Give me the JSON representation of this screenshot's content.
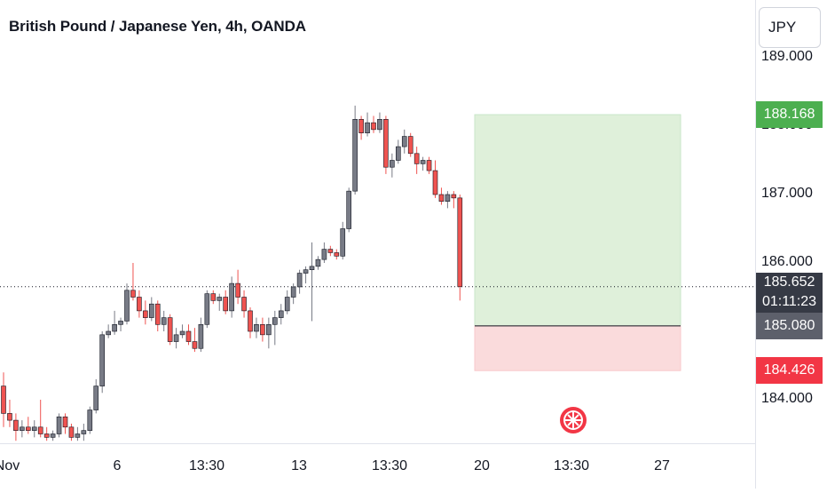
{
  "header": {
    "title": "British Pound / Japanese Yen, 4h, OANDA",
    "currency": "JPY"
  },
  "colors": {
    "up": "#787b86",
    "down": "#ef5350",
    "target_zone": "#dff0da",
    "stop_zone": "#fadbdc",
    "target_tag": "#4caf50",
    "stop_tag": "#f23645",
    "current_tag": "#363a45",
    "entry_tag": "#5d606b"
  },
  "price_tags": {
    "target": "188.168",
    "current": "185.652",
    "countdown": "01:11:23",
    "entry": "185.080",
    "stop": "184.426"
  },
  "chart_data": {
    "type": "candlestick",
    "title": "British Pound / Japanese Yen, 4h, OANDA",
    "y_ticks": [
      "189.000",
      "188.000",
      "187.000",
      "186.000",
      "184.000"
    ],
    "x_ticks": [
      "Nov",
      "6",
      "13:30",
      "13",
      "13:30",
      "20",
      "13:30",
      "27"
    ],
    "ylim": [
      183.4,
      189.0
    ],
    "candles": [
      [
        184.2,
        184.4,
        183.6,
        183.8
      ],
      [
        183.8,
        184.0,
        183.6,
        183.7
      ],
      [
        183.7,
        183.8,
        183.4,
        183.55
      ],
      [
        183.55,
        183.7,
        183.45,
        183.6
      ],
      [
        183.6,
        183.75,
        183.5,
        183.55
      ],
      [
        183.55,
        183.7,
        183.45,
        183.6
      ],
      [
        183.6,
        184.0,
        183.45,
        183.5
      ],
      [
        183.5,
        183.6,
        183.4,
        183.45
      ],
      [
        183.45,
        183.55,
        183.4,
        183.5
      ],
      [
        183.5,
        183.8,
        183.45,
        183.75
      ],
      [
        183.75,
        183.8,
        183.5,
        183.6
      ],
      [
        183.6,
        183.65,
        183.4,
        183.45
      ],
      [
        183.45,
        183.6,
        183.4,
        183.5
      ],
      [
        183.5,
        183.65,
        183.4,
        183.55
      ],
      [
        183.55,
        183.9,
        183.5,
        183.85
      ],
      [
        183.85,
        184.3,
        183.8,
        184.2
      ],
      [
        184.2,
        185.0,
        184.1,
        184.95
      ],
      [
        184.95,
        185.1,
        184.9,
        185.0
      ],
      [
        185.0,
        185.3,
        184.95,
        185.1
      ],
      [
        185.1,
        185.2,
        185.0,
        185.15
      ],
      [
        185.15,
        185.7,
        185.1,
        185.6
      ],
      [
        185.6,
        186.0,
        185.45,
        185.5
      ],
      [
        185.5,
        185.6,
        185.2,
        185.3
      ],
      [
        185.3,
        185.45,
        185.1,
        185.2
      ],
      [
        185.2,
        185.5,
        185.15,
        185.4
      ],
      [
        185.4,
        185.45,
        185.0,
        185.1
      ],
      [
        185.1,
        185.3,
        185.0,
        185.2
      ],
      [
        185.2,
        185.25,
        184.8,
        184.85
      ],
      [
        184.85,
        185.05,
        184.75,
        184.95
      ],
      [
        184.95,
        185.1,
        184.9,
        185.0
      ],
      [
        185.0,
        185.1,
        184.8,
        184.85
      ],
      [
        184.85,
        185.05,
        184.7,
        184.75
      ],
      [
        184.75,
        185.2,
        184.7,
        185.1
      ],
      [
        185.1,
        185.6,
        185.05,
        185.55
      ],
      [
        185.55,
        185.6,
        185.4,
        185.45
      ],
      [
        185.45,
        185.55,
        185.3,
        185.5
      ],
      [
        185.5,
        185.6,
        185.25,
        185.3
      ],
      [
        185.3,
        185.8,
        185.2,
        185.7
      ],
      [
        185.7,
        185.9,
        185.4,
        185.5
      ],
      [
        185.5,
        185.6,
        185.2,
        185.3
      ],
      [
        185.3,
        185.35,
        184.9,
        185.0
      ],
      [
        185.0,
        185.2,
        184.9,
        185.1
      ],
      [
        185.1,
        185.2,
        184.85,
        184.95
      ],
      [
        184.95,
        185.2,
        184.75,
        185.1
      ],
      [
        185.1,
        185.3,
        184.8,
        185.2
      ],
      [
        185.2,
        185.4,
        185.1,
        185.3
      ],
      [
        185.3,
        185.6,
        185.25,
        185.5
      ],
      [
        185.5,
        185.7,
        185.4,
        185.65
      ],
      [
        185.65,
        185.9,
        185.55,
        185.85
      ],
      [
        185.85,
        185.95,
        185.7,
        185.9
      ],
      [
        185.9,
        186.3,
        185.15,
        185.95
      ],
      [
        185.95,
        186.1,
        185.9,
        186.05
      ],
      [
        186.05,
        186.3,
        186.0,
        186.2
      ],
      [
        186.2,
        186.25,
        186.1,
        186.15
      ],
      [
        186.15,
        186.2,
        186.05,
        186.1
      ],
      [
        186.1,
        186.6,
        186.05,
        186.5
      ],
      [
        186.5,
        187.1,
        186.45,
        187.05
      ],
      [
        187.05,
        188.3,
        187.0,
        188.1
      ],
      [
        188.1,
        188.15,
        187.8,
        187.9
      ],
      [
        187.9,
        188.2,
        187.85,
        188.05
      ],
      [
        188.05,
        188.15,
        187.9,
        187.95
      ],
      [
        187.95,
        188.2,
        187.9,
        188.1
      ],
      [
        188.1,
        188.15,
        187.3,
        187.4
      ],
      [
        187.4,
        187.6,
        187.25,
        187.5
      ],
      [
        187.5,
        187.8,
        187.45,
        187.7
      ],
      [
        187.7,
        187.95,
        187.6,
        187.85
      ],
      [
        187.85,
        187.9,
        187.55,
        187.6
      ],
      [
        187.6,
        187.7,
        187.3,
        187.45
      ],
      [
        187.45,
        187.55,
        187.35,
        187.5
      ],
      [
        187.5,
        187.55,
        187.3,
        187.35
      ],
      [
        187.35,
        187.5,
        186.95,
        187.0
      ],
      [
        187.0,
        187.1,
        186.85,
        186.9
      ],
      [
        186.9,
        187.05,
        186.8,
        187.0
      ],
      [
        187.0,
        187.05,
        186.8,
        186.95
      ],
      [
        186.95,
        187.0,
        185.45,
        185.652
      ]
    ],
    "position": {
      "type": "long",
      "entry": 185.08,
      "target": 188.168,
      "stop": 184.426,
      "start_index": 78,
      "end_index": 102
    },
    "current_price": 185.652
  }
}
